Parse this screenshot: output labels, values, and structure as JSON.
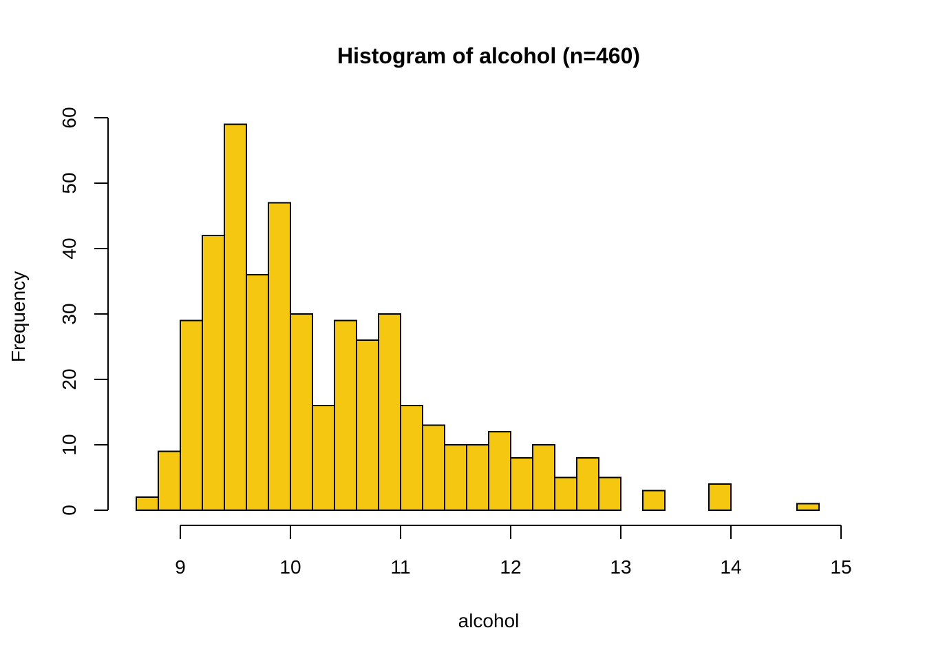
{
  "chart_data": {
    "type": "bar",
    "title": "Histogram of alcohol (n=460)",
    "xlabel": "alcohol",
    "ylabel": "Frequency",
    "bar_color": "#F5C710",
    "edge_color": "#000000",
    "bin_width": 0.2,
    "bin_start": 8.6,
    "values": [
      2,
      9,
      29,
      42,
      59,
      36,
      47,
      30,
      16,
      29,
      26,
      30,
      16,
      13,
      10,
      10,
      12,
      8,
      10,
      5,
      8,
      5,
      0,
      3,
      0,
      0,
      4,
      0,
      0,
      0,
      1
    ],
    "xlim": [
      8.6,
      15
    ],
    "ylim": [
      0,
      60
    ],
    "x_ticks": [
      9,
      10,
      11,
      12,
      13,
      14,
      15
    ],
    "y_ticks": [
      0,
      10,
      20,
      30,
      40,
      50,
      60
    ],
    "grid": false,
    "legend": "none"
  }
}
